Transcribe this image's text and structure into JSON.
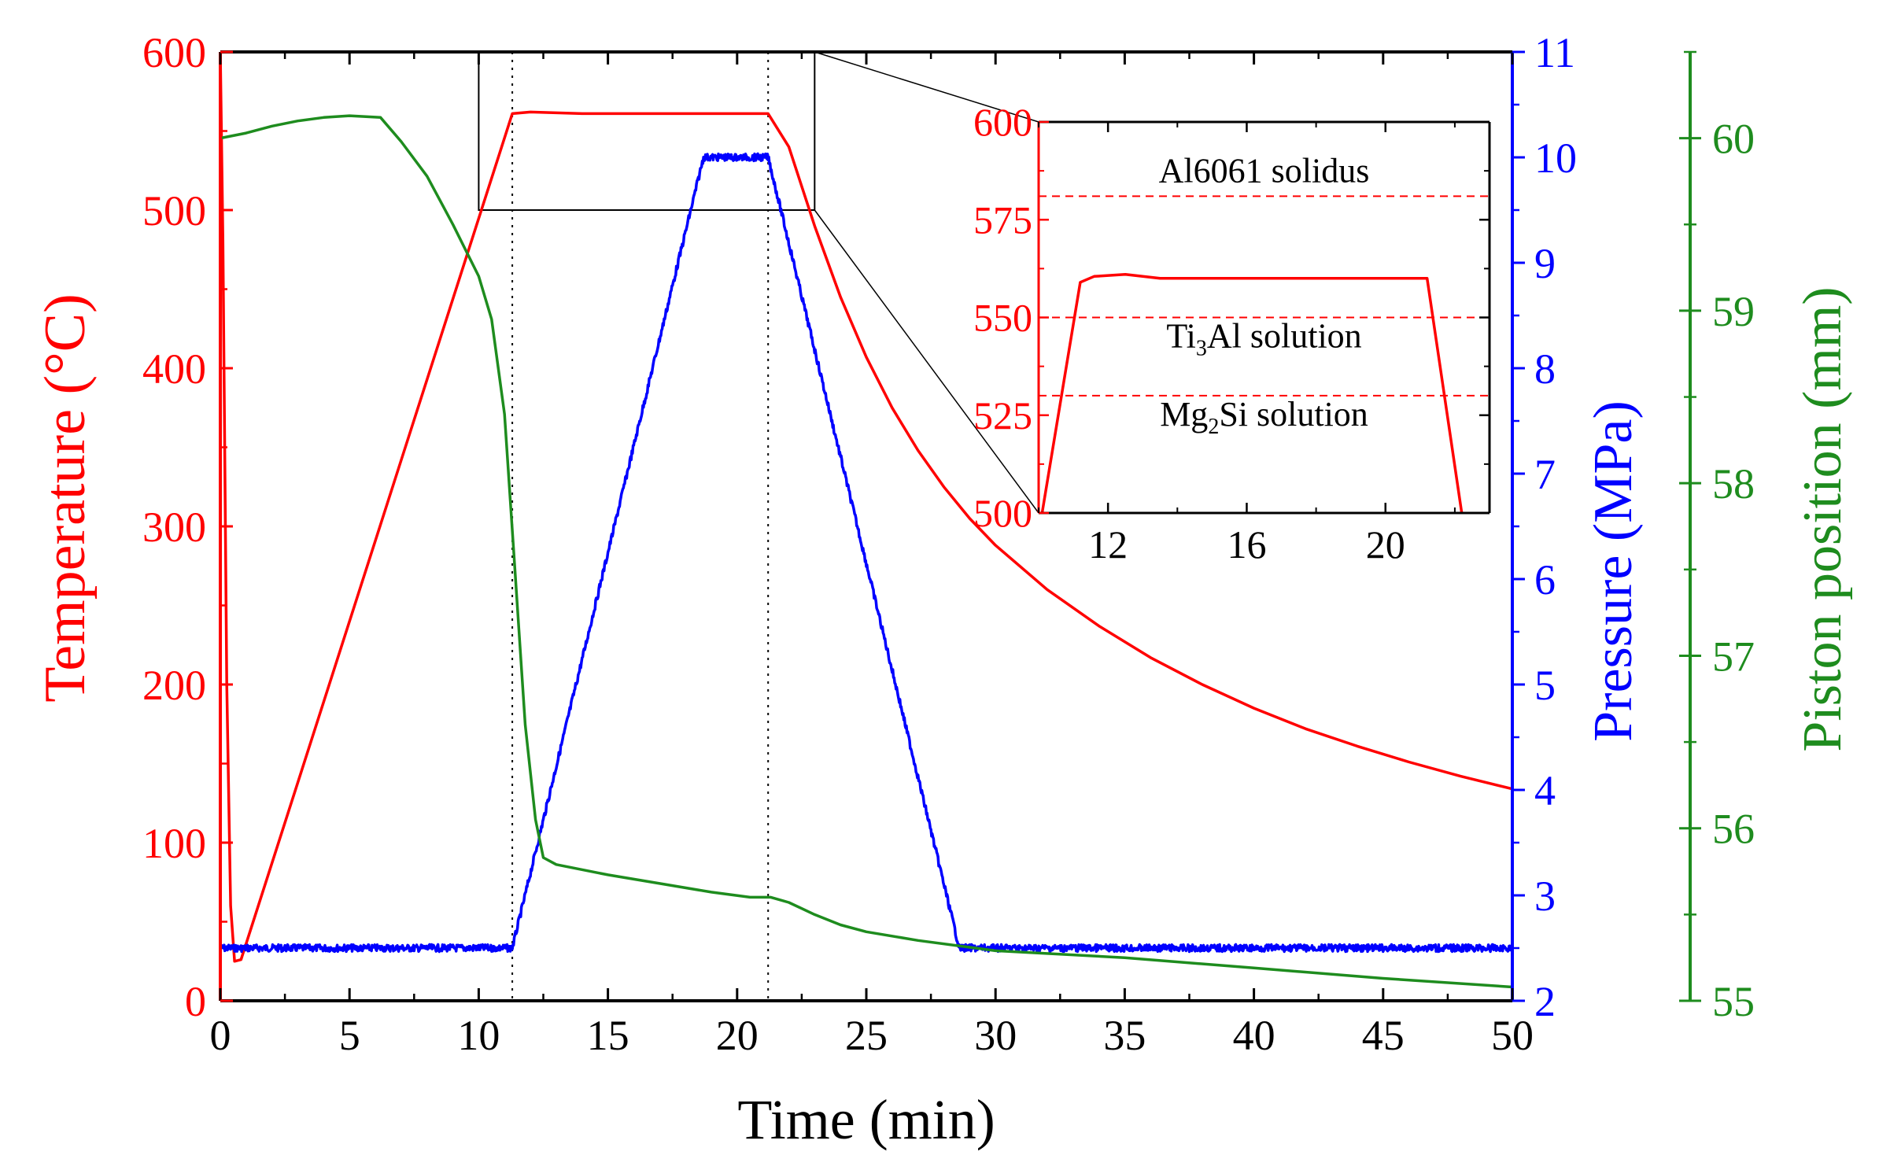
{
  "colors": {
    "temperature": "#ff0000",
    "pressure": "#0000ff",
    "piston": "#1e8c1e",
    "axis": "#000000",
    "solution_lines": "#ff0000"
  },
  "chart_data": [
    {
      "id": "main",
      "type": "line",
      "xlabel": "Time (min)",
      "xlim": [
        0,
        50
      ],
      "xticks": [
        "0",
        "5",
        "10",
        "15",
        "20",
        "25",
        "30",
        "35",
        "40",
        "45",
        "50"
      ],
      "axes": {
        "temperature": {
          "label": "Temperature (°C)",
          "ylim": [
            0,
            600
          ],
          "ticks": [
            "0",
            "100",
            "200",
            "300",
            "400",
            "500",
            "600"
          ],
          "side": "left"
        },
        "pressure": {
          "label": "Pressure (MPa)",
          "ylim": [
            2,
            11
          ],
          "ticks": [
            "2",
            "3",
            "4",
            "5",
            "6",
            "7",
            "8",
            "9",
            "10",
            "11"
          ],
          "side": "right"
        },
        "piston": {
          "label": "Piston position (mm)",
          "ylim": [
            55,
            60.5
          ],
          "ticks": [
            "55",
            "56",
            "57",
            "58",
            "59",
            "60"
          ],
          "side": "right-offset"
        }
      },
      "vertical_markers_x": [
        11.3,
        21.2
      ],
      "zoom_region": {
        "x": [
          10,
          23
        ],
        "y": [
          500,
          600
        ]
      },
      "series": [
        {
          "name": "Temperature",
          "axis": "temperature",
          "points": [
            [
              0,
              600
            ],
            [
              0.1,
              480
            ],
            [
              0.25,
              200
            ],
            [
              0.4,
              60
            ],
            [
              0.55,
              25
            ],
            [
              0.8,
              26
            ],
            [
              11.3,
              561
            ],
            [
              12,
              562
            ],
            [
              14,
              561
            ],
            [
              21.2,
              561
            ],
            [
              22,
              540
            ],
            [
              23,
              490
            ],
            [
              24,
              445
            ],
            [
              25,
              407
            ],
            [
              26,
              375
            ],
            [
              27,
              348
            ],
            [
              28,
              325
            ],
            [
              29,
              305
            ],
            [
              30,
              288
            ],
            [
              32,
              260
            ],
            [
              34,
              237
            ],
            [
              36,
              217
            ],
            [
              38,
              200
            ],
            [
              40,
              185
            ],
            [
              42,
              172
            ],
            [
              44,
              161
            ],
            [
              46,
              151
            ],
            [
              48,
              142
            ],
            [
              50,
              134
            ]
          ]
        },
        {
          "name": "Pressure",
          "axis": "pressure",
          "noise": true,
          "points": [
            [
              0,
              2.5
            ],
            [
              11.3,
              2.5
            ],
            [
              18.7,
              10
            ],
            [
              21.2,
              10
            ],
            [
              28.6,
              2.5
            ],
            [
              50,
              2.5
            ]
          ]
        },
        {
          "name": "Piston position",
          "axis": "piston",
          "points": [
            [
              0,
              60
            ],
            [
              1,
              60.03
            ],
            [
              2,
              60.07
            ],
            [
              3,
              60.1
            ],
            [
              4,
              60.12
            ],
            [
              5,
              60.13
            ],
            [
              6.2,
              60.12
            ],
            [
              7,
              59.98
            ],
            [
              8,
              59.78
            ],
            [
              9,
              59.5
            ],
            [
              10,
              59.2
            ],
            [
              10.5,
              58.95
            ],
            [
              11,
              58.4
            ],
            [
              11.4,
              57.5
            ],
            [
              11.8,
              56.6
            ],
            [
              12.2,
              56.05
            ],
            [
              12.5,
              55.83
            ],
            [
              13,
              55.79
            ],
            [
              15,
              55.73
            ],
            [
              17,
              55.68
            ],
            [
              19,
              55.63
            ],
            [
              20.5,
              55.6
            ],
            [
              21.3,
              55.6
            ],
            [
              22,
              55.57
            ],
            [
              23,
              55.5
            ],
            [
              24,
              55.44
            ],
            [
              25,
              55.4
            ],
            [
              27,
              55.35
            ],
            [
              29,
              55.31
            ],
            [
              30,
              55.29
            ],
            [
              35,
              55.25
            ],
            [
              40,
              55.19
            ],
            [
              45,
              55.13
            ],
            [
              50,
              55.08
            ]
          ]
        }
      ]
    },
    {
      "id": "inset",
      "type": "line",
      "xlim": [
        10,
        23
      ],
      "ylim": [
        500,
        600
      ],
      "xticks": [
        "12",
        "16",
        "20"
      ],
      "yticks": [
        "500",
        "525",
        "550",
        "575",
        "600"
      ],
      "series": [
        {
          "name": "Temperature",
          "points": [
            [
              10.1,
              500
            ],
            [
              11.2,
              559
            ],
            [
              11.6,
              560.5
            ],
            [
              12.5,
              561
            ],
            [
              13.5,
              560
            ],
            [
              15,
              560
            ],
            [
              21.2,
              560
            ],
            [
              22.2,
              500
            ]
          ]
        }
      ],
      "reference_lines": [
        {
          "y": 581,
          "label": "Al6061 solidus"
        },
        {
          "y": 550,
          "label": "Ti3Al solution",
          "label_parts": [
            "Ti",
            "3",
            "Al solution"
          ]
        },
        {
          "y": 530,
          "label": "Mg2Si solution",
          "label_parts": [
            "Mg",
            "2",
            "Si solution"
          ]
        }
      ]
    }
  ]
}
